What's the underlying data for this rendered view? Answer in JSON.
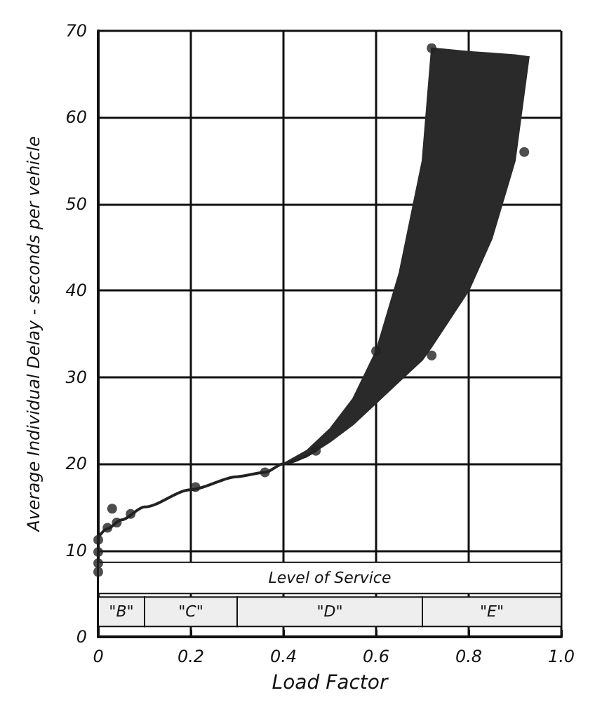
{
  "chart_data": {
    "type": "scatter",
    "xlabel": "Load Factor",
    "ylabel": "Average Individual Delay - seconds per vehicle",
    "xlim": [
      0,
      1.0
    ],
    "ylim": [
      0,
      70
    ],
    "xticks": [
      0,
      0.2,
      0.4,
      0.6,
      0.8,
      {
        "value": 1.0,
        "label": "1.0"
      }
    ],
    "yticks": [
      0,
      10,
      20,
      30,
      40,
      50,
      60,
      70
    ],
    "grid": true,
    "marker": "circle",
    "series": [
      {
        "color": "#222222",
        "x": [
          0,
          0,
          0,
          0,
          0.02,
          0.03,
          0.04,
          0.07,
          0.21,
          0.36,
          0.47,
          0.6,
          0.72,
          0.72,
          0.92
        ],
        "values": [
          11.2,
          9.8,
          8.5,
          7.5,
          12.6,
          14.8,
          13.2,
          14.2,
          17.3,
          19,
          21.5,
          33,
          32.5,
          68,
          56
        ]
      },
      {
        "type": "line",
        "color": "#222222",
        "marker": "none",
        "x": [
          0,
          0.02,
          0.05,
          0.1,
          0.2,
          0.3,
          0.36,
          0.4,
          0.47
        ],
        "values": [
          11.5,
          12.5,
          13.5,
          15,
          17,
          18.5,
          19,
          20,
          21.5
        ]
      },
      {
        "type": "area",
        "color": "#2a2a2a",
        "x": [
          0.4,
          0.45,
          0.5,
          0.55,
          0.6,
          0.65,
          0.7,
          0.72,
          0.8,
          0.85,
          0.9,
          0.93
        ],
        "values": [
          null,
          null,
          null,
          null,
          null,
          null,
          null,
          null,
          null,
          null,
          null,
          null
        ],
        "upper": [
          20,
          21.5,
          24,
          27.5,
          33,
          42,
          55,
          68,
          67.6,
          67.4,
          67.2,
          67
        ],
        "lower": [
          20,
          20.8,
          22.5,
          24.5,
          27,
          29.5,
          32,
          33.5,
          40,
          46,
          55,
          67
        ]
      }
    ],
    "bands": [
      {
        "axis": "x",
        "from": 0,
        "to": 1.0,
        "label": "Level of Service",
        "color": "#ffffff"
      },
      {
        "axis": "x",
        "from": 0,
        "to": 0.1,
        "label": "\"B\"",
        "color": "#eeeeee"
      },
      {
        "axis": "x",
        "from": 0.1,
        "to": 0.3,
        "label": "\"C\"",
        "color": "#eeeeee"
      },
      {
        "axis": "x",
        "from": 0.3,
        "to": 0.7,
        "label": "\"D\"",
        "color": "#eeeeee"
      },
      {
        "axis": "x",
        "from": 0.7,
        "to": 1.0,
        "label": "\"E\"",
        "color": "#eeeeee"
      }
    ]
  }
}
